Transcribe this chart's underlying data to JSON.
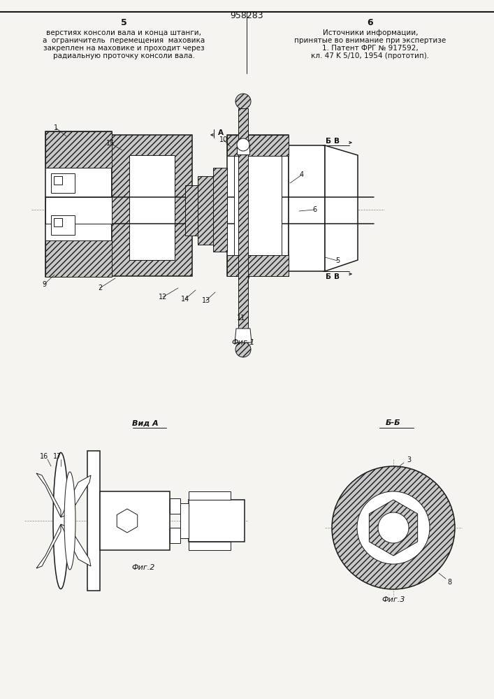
{
  "bg_color": "#f5f4f0",
  "line_color": "#1a1a1a",
  "page_num_left": "5",
  "page_num_right": "6",
  "patent_num": "958283",
  "text_left_line1": "верстиях консоли вала и конца штанги,",
  "text_left_line2": "а  ограничитель  перемещения  маховика",
  "text_left_line3": "закреплен на маховике и проходит через",
  "text_left_line4": "радиальную проточку консоли вала.",
  "text_right_line1": "Источники информации,",
  "text_right_line2": "принятые во внимание при экспертизе",
  "text_right_line3": "1. Патент ФРГ № 917592,",
  "text_right_line4": "кл. 47 K 5/10, 1954 (прототип).",
  "fig1_caption": "Фиг.1",
  "fig2_caption": "Фиг.2",
  "fig3_caption": "Фиг.3",
  "vid_a_label": "Вид A",
  "bb_label": "Б-Б"
}
